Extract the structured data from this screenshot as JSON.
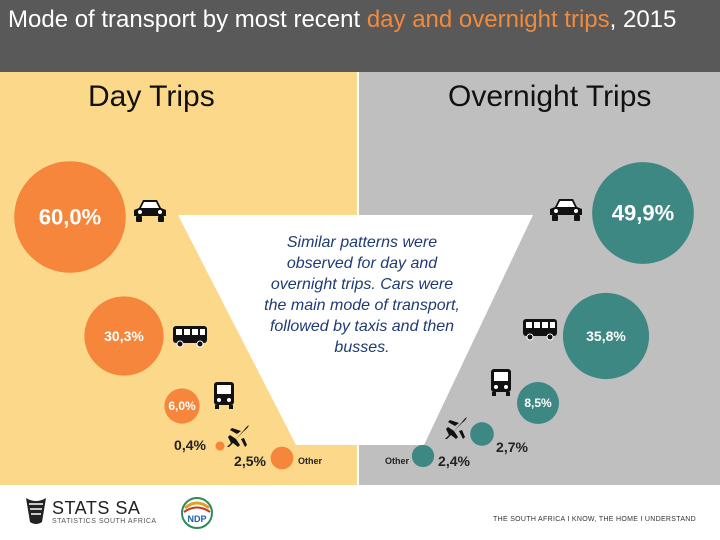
{
  "header": {
    "title_prefix": "Mode of transport by most recent ",
    "title_accent": "day and overnight trips",
    "title_suffix": ", 2015"
  },
  "colors": {
    "day": "#f5863c",
    "overnight": "#3e8883",
    "accent": "#f08a3c"
  },
  "chart_data": {
    "type": "bubble",
    "title": "Mode of transport by most recent day and overnight trips, 2015",
    "panels": [
      {
        "name": "Day Trips",
        "items": [
          {
            "mode": "car",
            "value": 60.0,
            "label": "60,0%"
          },
          {
            "mode": "taxi",
            "value": 30.3,
            "label": "30,3%"
          },
          {
            "mode": "bus",
            "value": 6.0,
            "label": "6,0%"
          },
          {
            "mode": "plane",
            "value": 0.4,
            "label": "0,4%"
          },
          {
            "mode": "other",
            "value": 2.5,
            "label": "2,5%",
            "tag": "Other"
          }
        ]
      },
      {
        "name": "Overnight Trips",
        "items": [
          {
            "mode": "car",
            "value": 49.9,
            "label": "49,9%"
          },
          {
            "mode": "taxi",
            "value": 35.8,
            "label": "35,8%"
          },
          {
            "mode": "bus",
            "value": 8.5,
            "label": "8,5%"
          },
          {
            "mode": "plane",
            "value": 2.7,
            "label": "2,7%"
          },
          {
            "mode": "other",
            "value": 2.4,
            "label": "2,4%",
            "tag": "Other"
          }
        ]
      }
    ]
  },
  "callout": "Similar patterns were observed for day and overnight trips. Cars were the main mode of transport, followed by taxis and then busses.",
  "icons": [
    "car-icon",
    "taxi-icon",
    "bus-icon",
    "plane-icon"
  ],
  "footer": {
    "logo_name": "STATS SA",
    "logo_sub": "STATISTICS SOUTH AFRICA",
    "ndp": "NDP",
    "tagline": "THE SOUTH AFRICA I KNOW, THE HOME I UNDERSTAND"
  }
}
